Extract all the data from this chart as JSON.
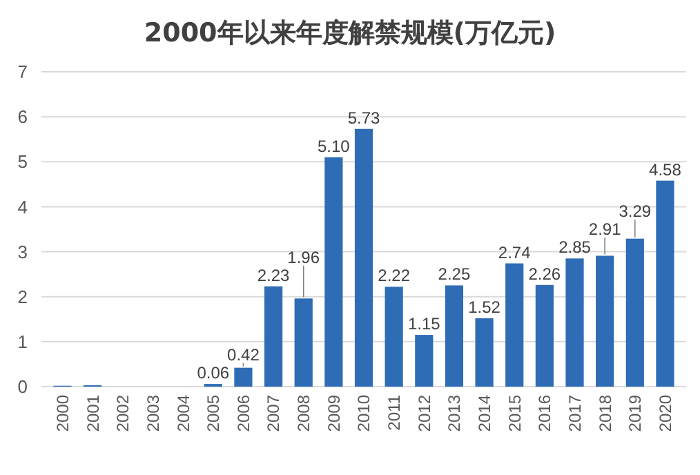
{
  "chart_data": {
    "type": "bar",
    "title": "2000年以来年度解禁规模(万亿元)",
    "categories": [
      "2000",
      "2001",
      "2002",
      "2003",
      "2004",
      "2005",
      "2006",
      "2007",
      "2008",
      "2009",
      "2010",
      "2011",
      "2012",
      "2013",
      "2014",
      "2015",
      "2016",
      "2017",
      "2018",
      "2019",
      "2020"
    ],
    "values": [
      0.02,
      0.03,
      0,
      0,
      0,
      0.06,
      0.42,
      2.23,
      1.96,
      5.1,
      5.73,
      2.22,
      1.15,
      2.25,
      1.52,
      2.74,
      2.26,
      2.85,
      2.91,
      3.29,
      4.58
    ],
    "value_labels": [
      null,
      null,
      null,
      null,
      null,
      "0.06",
      "0.42",
      "2.23",
      "1.96",
      "5.10",
      "5.73",
      "2.22",
      "1.15",
      "2.25",
      "1.52",
      "2.74",
      "2.26",
      "2.85",
      "2.91",
      "3.29",
      "4.58"
    ],
    "color": "#2e6cb5",
    "ylim": [
      0,
      7
    ],
    "yticks": [
      0,
      1,
      2,
      3,
      4,
      5,
      6,
      7
    ],
    "grid": "y"
  }
}
